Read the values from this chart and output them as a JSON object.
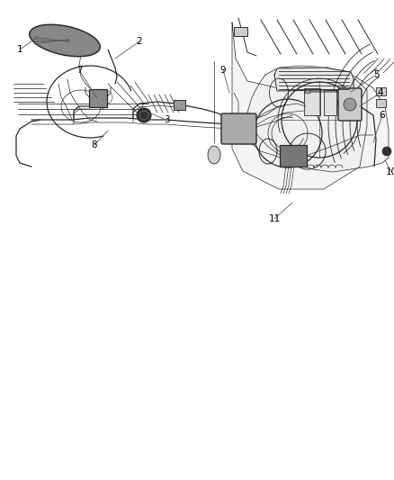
{
  "background_color": "#ffffff",
  "line_color": "#2a2a2a",
  "label_color": "#000000",
  "label_fontsize": 7.5,
  "fig_width": 4.38,
  "fig_height": 5.33,
  "dpi": 100
}
